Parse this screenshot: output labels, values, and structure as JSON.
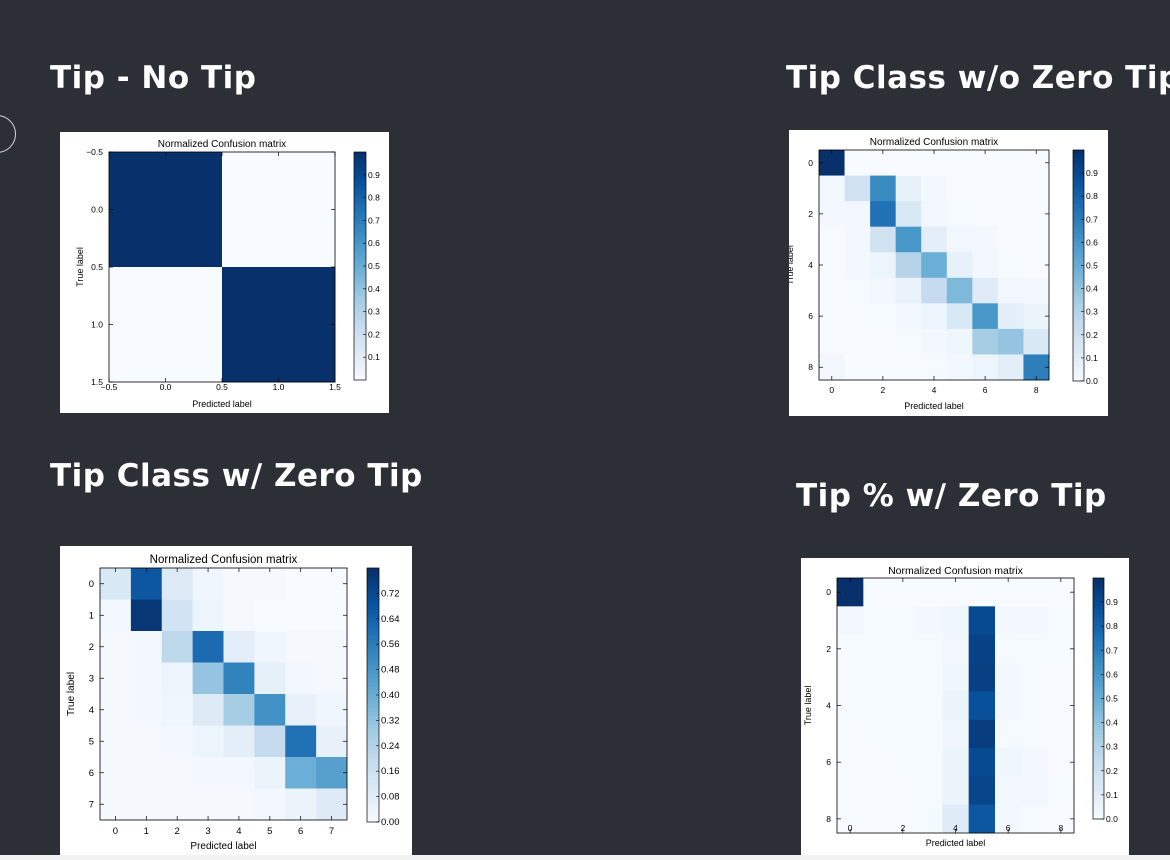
{
  "panels": [
    {
      "heading": "Tip - No Tip",
      "chart_data": {
        "type": "heatmap",
        "title": "Normalized Confusion matrix",
        "xlabel": "Predicted label",
        "ylabel": "True label",
        "xticks": [
          "−0.5",
          "0.0",
          "0.5",
          "1.0",
          "1.5"
        ],
        "yticks": [
          "−0.5",
          "0.0",
          "0.5",
          "1.0",
          "1.5"
        ],
        "colorbar_ticks": [
          "0.1",
          "0.2",
          "0.3",
          "0.4",
          "0.5",
          "0.6",
          "0.7",
          "0.8",
          "0.9"
        ],
        "vmin": 0.0,
        "vmax": 1.0,
        "matrix": [
          [
            1.0,
            0.0
          ],
          [
            0.0,
            1.0
          ]
        ]
      }
    },
    {
      "heading": "Tip Class w/o Zero Tip",
      "chart_data": {
        "type": "heatmap",
        "title": "Normalized Confusion matrix",
        "xlabel": "Predicted label",
        "ylabel": "True label",
        "xticks": [
          "0",
          "2",
          "4",
          "6",
          "8"
        ],
        "yticks": [
          "0",
          "2",
          "4",
          "6",
          "8"
        ],
        "colorbar_ticks": [
          "0.0",
          "0.1",
          "0.2",
          "0.3",
          "0.4",
          "0.5",
          "0.6",
          "0.7",
          "0.8",
          "0.9"
        ],
        "vmin": 0.0,
        "vmax": 1.0,
        "matrix": [
          [
            1.0,
            0.0,
            0.0,
            0.0,
            0.0,
            0.0,
            0.0,
            0.0,
            0.0
          ],
          [
            0.02,
            0.2,
            0.65,
            0.08,
            0.02,
            0.0,
            0.0,
            0.0,
            0.0
          ],
          [
            0.02,
            0.03,
            0.75,
            0.15,
            0.03,
            0.01,
            0.0,
            0.0,
            0.0
          ],
          [
            0.0,
            0.02,
            0.2,
            0.6,
            0.1,
            0.03,
            0.02,
            0.0,
            0.0
          ],
          [
            0.0,
            0.02,
            0.05,
            0.3,
            0.5,
            0.08,
            0.03,
            0.01,
            0.0
          ],
          [
            0.0,
            0.01,
            0.02,
            0.07,
            0.25,
            0.45,
            0.12,
            0.03,
            0.02
          ],
          [
            0.0,
            0.0,
            0.01,
            0.02,
            0.05,
            0.15,
            0.6,
            0.1,
            0.06
          ],
          [
            0.0,
            0.0,
            0.0,
            0.01,
            0.02,
            0.04,
            0.35,
            0.4,
            0.15
          ],
          [
            0.03,
            0.0,
            0.0,
            0.0,
            0.01,
            0.02,
            0.05,
            0.1,
            0.7
          ]
        ]
      }
    },
    {
      "heading": "Tip Class w/ Zero Tip",
      "chart_data": {
        "type": "heatmap",
        "title": "Normalized Confusion matrix",
        "xlabel": "Predicted label",
        "ylabel": "True label",
        "xticks": [
          "0",
          "1",
          "2",
          "3",
          "4",
          "5",
          "6",
          "7"
        ],
        "yticks": [
          "0",
          "1",
          "2",
          "3",
          "4",
          "5",
          "6",
          "7"
        ],
        "colorbar_ticks": [
          "0.00",
          "0.08",
          "0.16",
          "0.24",
          "0.32",
          "0.40",
          "0.48",
          "0.56",
          "0.64",
          "0.72"
        ],
        "vmin": 0.0,
        "vmax": 0.8,
        "matrix": [
          [
            0.12,
            0.68,
            0.1,
            0.03,
            0.01,
            0.01,
            0.0,
            0.0
          ],
          [
            0.02,
            0.78,
            0.15,
            0.04,
            0.01,
            0.0,
            0.0,
            0.0
          ],
          [
            0.01,
            0.02,
            0.22,
            0.62,
            0.08,
            0.03,
            0.01,
            0.01
          ],
          [
            0.01,
            0.02,
            0.04,
            0.32,
            0.55,
            0.07,
            0.02,
            0.01
          ],
          [
            0.01,
            0.02,
            0.03,
            0.1,
            0.28,
            0.5,
            0.06,
            0.03
          ],
          [
            0.01,
            0.01,
            0.02,
            0.04,
            0.08,
            0.2,
            0.6,
            0.06
          ],
          [
            0.01,
            0.01,
            0.01,
            0.02,
            0.02,
            0.05,
            0.4,
            0.45
          ],
          [
            0.01,
            0.01,
            0.01,
            0.01,
            0.01,
            0.02,
            0.05,
            0.1
          ]
        ]
      }
    },
    {
      "heading": "Tip % w/ Zero Tip",
      "chart_data": {
        "type": "heatmap",
        "title": "Normalized Confusion matrix",
        "xlabel": "Predicted label",
        "ylabel": "True label",
        "xticks": [
          "0",
          "2",
          "4",
          "6",
          "8"
        ],
        "yticks": [
          "0",
          "2",
          "4",
          "6",
          "8"
        ],
        "colorbar_ticks": [
          "0.0",
          "0.1",
          "0.2",
          "0.3",
          "0.4",
          "0.5",
          "0.6",
          "0.7",
          "0.8",
          "0.9"
        ],
        "vmin": 0.0,
        "vmax": 1.0,
        "matrix": [
          [
            1.0,
            0.0,
            0.0,
            0.0,
            0.0,
            0.0,
            0.0,
            0.0,
            0.0
          ],
          [
            0.03,
            0.01,
            0.01,
            0.02,
            0.04,
            0.9,
            0.02,
            0.02,
            0.01
          ],
          [
            0.01,
            0.01,
            0.01,
            0.01,
            0.03,
            0.93,
            0.01,
            0.01,
            0.01
          ],
          [
            0.01,
            0.01,
            0.01,
            0.01,
            0.04,
            0.94,
            0.02,
            0.01,
            0.0
          ],
          [
            0.01,
            0.01,
            0.01,
            0.01,
            0.06,
            0.88,
            0.02,
            0.01,
            0.0
          ],
          [
            0.0,
            0.01,
            0.01,
            0.01,
            0.04,
            0.95,
            0.01,
            0.01,
            0.0
          ],
          [
            0.0,
            0.0,
            0.01,
            0.01,
            0.06,
            0.9,
            0.04,
            0.02,
            0.0
          ],
          [
            0.0,
            0.0,
            0.0,
            0.01,
            0.06,
            0.92,
            0.03,
            0.03,
            0.01
          ],
          [
            0.0,
            0.0,
            0.0,
            0.01,
            0.12,
            0.85,
            0.02,
            0.01,
            0.0
          ]
        ]
      }
    }
  ]
}
